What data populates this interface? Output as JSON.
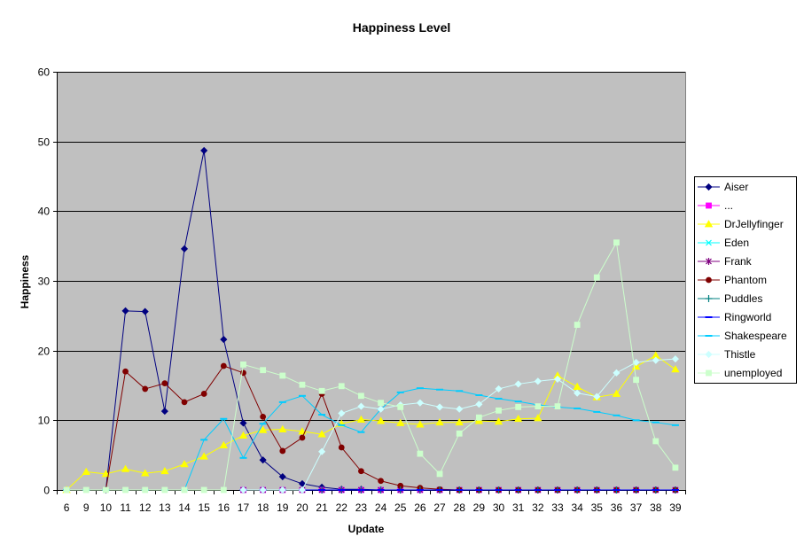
{
  "chart_data": {
    "type": "line",
    "title": "Happiness Level",
    "xlabel": "Update",
    "ylabel": "Happiness",
    "ylim": [
      0,
      60
    ],
    "yticks": [
      0,
      10,
      20,
      30,
      40,
      50,
      60
    ],
    "grid": true,
    "legend": "right",
    "plot_background": "#c0c0c0",
    "categories": [
      "6",
      "9",
      "10",
      "11",
      "12",
      "13",
      "14",
      "15",
      "16",
      "17",
      "18",
      "19",
      "20",
      "21",
      "22",
      "23",
      "24",
      "25",
      "26",
      "27",
      "28",
      "29",
      "30",
      "31",
      "32",
      "33",
      "34",
      "35",
      "36",
      "37",
      "38",
      "39"
    ],
    "series": [
      {
        "name": "Aiser",
        "color": "#000080",
        "marker": "diamond",
        "values": [
          null,
          null,
          0,
          25.7,
          25.6,
          11.3,
          34.6,
          48.7,
          21.6,
          9.6,
          4.3,
          1.9,
          0.9,
          0.4,
          0.1,
          0.1,
          0,
          0,
          0,
          0,
          0,
          0,
          0,
          0,
          0,
          0,
          0,
          0,
          0,
          0,
          0,
          0
        ]
      },
      {
        "name": "...",
        "color": "#ff00ff",
        "marker": "square",
        "values": [
          null,
          null,
          null,
          null,
          null,
          null,
          null,
          null,
          null,
          0,
          0,
          0,
          0,
          0,
          0,
          0,
          0,
          0,
          0,
          0,
          0,
          0,
          0,
          0,
          0,
          0,
          0,
          0,
          0,
          0,
          0,
          0
        ]
      },
      {
        "name": "DrJellyfinger",
        "color": "#ffff00",
        "marker": "triangle",
        "values": [
          0,
          2.6,
          2.3,
          3.0,
          2.4,
          2.7,
          3.7,
          4.8,
          6.4,
          7.8,
          8.6,
          8.7,
          8.4,
          8.0,
          9.5,
          10.1,
          9.9,
          9.6,
          9.4,
          9.7,
          9.7,
          9.9,
          9.8,
          10.2,
          10.3,
          16.4,
          14.8,
          13.3,
          13.8,
          17.7,
          19.3,
          17.3
        ]
      },
      {
        "name": "Eden",
        "color": "#00ffff",
        "marker": "x",
        "values": [
          null,
          null,
          null,
          null,
          null,
          null,
          null,
          null,
          null,
          0,
          0,
          0,
          0,
          0,
          0,
          0,
          0,
          0,
          0,
          0,
          0,
          0,
          0,
          0,
          0,
          0,
          0,
          0,
          0,
          0,
          0,
          0
        ]
      },
      {
        "name": "Frank",
        "color": "#800080",
        "marker": "star",
        "values": [
          null,
          null,
          null,
          null,
          null,
          null,
          null,
          null,
          null,
          0,
          0,
          0,
          0,
          0,
          0,
          0,
          0,
          0,
          0,
          0,
          0,
          0,
          0,
          0,
          0,
          0,
          0,
          0,
          0,
          0,
          0,
          0
        ]
      },
      {
        "name": "Phantom",
        "color": "#800000",
        "marker": "circle",
        "values": [
          null,
          null,
          0,
          17.0,
          14.5,
          15.3,
          12.6,
          13.8,
          17.8,
          16.8,
          10.5,
          5.6,
          7.5,
          13.8,
          6.1,
          2.7,
          1.3,
          0.6,
          0.3,
          0.1,
          0,
          0,
          0,
          0,
          0,
          0,
          0,
          0,
          0,
          0,
          0,
          0
        ]
      },
      {
        "name": "Puddles",
        "color": "#008080",
        "marker": "plus",
        "values": [
          null,
          null,
          null,
          null,
          null,
          null,
          null,
          null,
          null,
          0,
          0,
          0,
          0,
          0,
          0,
          0,
          0,
          0,
          0,
          0,
          0,
          0,
          0,
          0,
          0,
          0,
          0,
          0,
          0,
          0,
          0,
          0
        ]
      },
      {
        "name": "Ringworld",
        "color": "#0000ff",
        "marker": "dash",
        "values": [
          null,
          null,
          null,
          null,
          null,
          null,
          null,
          null,
          null,
          0,
          0,
          0,
          0,
          0,
          0,
          0,
          0,
          0,
          0,
          0,
          0,
          0,
          0,
          0,
          0,
          0,
          0,
          0,
          0,
          0,
          0,
          0
        ]
      },
      {
        "name": "Shakespeare",
        "color": "#00ccff",
        "marker": "dash",
        "values": [
          0,
          0,
          0,
          0,
          0,
          0,
          0,
          7.2,
          10.2,
          4.6,
          9.5,
          12.6,
          13.5,
          10.8,
          9.3,
          8.3,
          11.6,
          14.0,
          14.6,
          14.4,
          14.2,
          13.6,
          13.1,
          12.7,
          12.2,
          11.9,
          11.7,
          11.2,
          10.7,
          10.0,
          9.7,
          9.3
        ]
      },
      {
        "name": "Thistle",
        "color": "#ccffff",
        "marker": "diamond",
        "values": [
          null,
          null,
          null,
          null,
          null,
          null,
          null,
          null,
          null,
          0,
          0,
          0,
          0,
          5.5,
          11.0,
          12.0,
          11.6,
          12.2,
          12.5,
          11.9,
          11.6,
          12.3,
          14.5,
          15.2,
          15.6,
          15.9,
          13.9,
          13.4,
          16.8,
          18.3,
          18.6,
          18.8
        ]
      },
      {
        "name": "unemployed",
        "color": "#ccffcc",
        "marker": "square",
        "values": [
          0,
          0,
          0,
          0,
          0,
          0,
          0,
          0,
          0,
          18.0,
          17.2,
          16.4,
          15.1,
          14.2,
          14.9,
          13.5,
          12.5,
          11.9,
          5.2,
          2.3,
          8.1,
          10.4,
          11.4,
          11.9,
          12.0,
          12.0,
          23.7,
          30.5,
          35.5,
          15.8,
          7.0,
          3.2
        ]
      }
    ]
  }
}
